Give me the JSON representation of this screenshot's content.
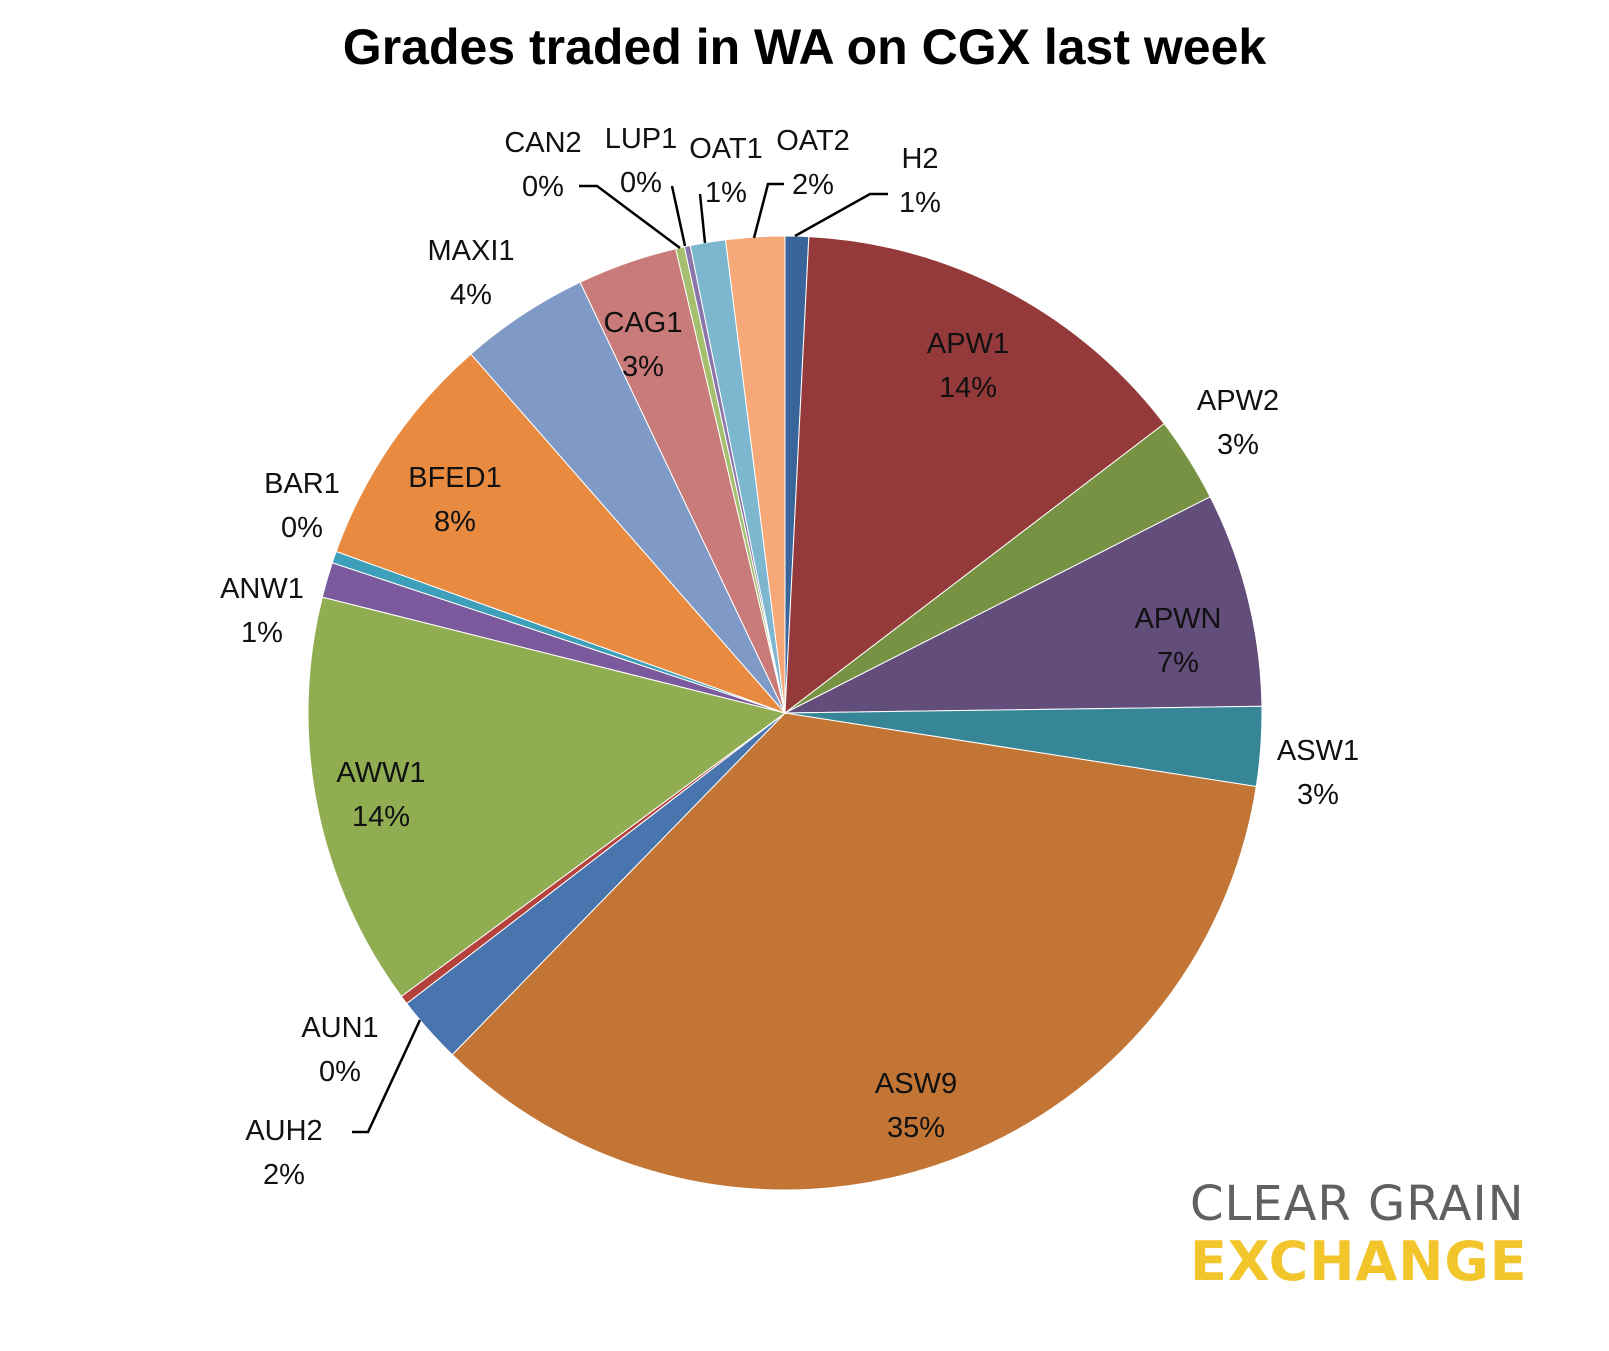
{
  "chart_data": {
    "type": "pie",
    "title": "Grades traded in WA on CGX last week",
    "start_angle_deg": 0,
    "direction": "clockwise",
    "slices": [
      {
        "label": "H2",
        "pct_label": "1%",
        "value": 0.8,
        "color": "#3a659b",
        "label_pos": "outside-leader"
      },
      {
        "label": "APW1",
        "pct_label": "14%",
        "value": 13.9,
        "color": "#953a3a",
        "label_pos": "inside"
      },
      {
        "label": "APW2",
        "pct_label": "3%",
        "value": 2.9,
        "color": "#789243",
        "label_pos": "outside"
      },
      {
        "label": "APWN",
        "pct_label": "7%",
        "value": 7.3,
        "color": "#624d7b",
        "label_pos": "inside"
      },
      {
        "label": "ASW1",
        "pct_label": "3%",
        "value": 2.7,
        "color": "#378697",
        "label_pos": "outside"
      },
      {
        "label": "ASW9",
        "pct_label": "35%",
        "value": 35.0,
        "color": "#c27535",
        "label_pos": "inside"
      },
      {
        "label": "AUH2",
        "pct_label": "2%",
        "value": 2.3,
        "color": "#4875ae",
        "label_pos": "outside-leader"
      },
      {
        "label": "AUN1",
        "pct_label": "0%",
        "value": 0.3,
        "color": "#b5413d",
        "label_pos": "outside"
      },
      {
        "label": "AWW1",
        "pct_label": "14%",
        "value": 14.1,
        "color": "#91ad52",
        "label_pos": "inside"
      },
      {
        "label": "ANW1",
        "pct_label": "1%",
        "value": 1.2,
        "color": "#7a5a9c",
        "label_pos": "outside"
      },
      {
        "label": "BAR1",
        "pct_label": "0%",
        "value": 0.4,
        "color": "#3d9fb9",
        "label_pos": "outside"
      },
      {
        "label": "BFED1",
        "pct_label": "8%",
        "value": 8.1,
        "color": "#e88b40",
        "label_pos": "inside"
      },
      {
        "label": "MAXI1",
        "pct_label": "4%",
        "value": 4.4,
        "color": "#7f9ac6",
        "label_pos": "outside"
      },
      {
        "label": "CAG1",
        "pct_label": "3%",
        "value": 3.4,
        "color": "#c97b79",
        "label_pos": "inside"
      },
      {
        "label": "CAN2",
        "pct_label": "0%",
        "value": 0.3,
        "color": "#a5bf6e",
        "label_pos": "outside-leader"
      },
      {
        "label": "LUP1",
        "pct_label": "0%",
        "value": 0.2,
        "color": "#8a75ab",
        "label_pos": "outside-leader"
      },
      {
        "label": "OAT1",
        "pct_label": "1%",
        "value": 1.2,
        "color": "#7db7cf",
        "label_pos": "outside-leader"
      },
      {
        "label": "OAT2",
        "pct_label": "2%",
        "value": 2.0,
        "color": "#f7a878",
        "label_pos": "outside-leader"
      }
    ]
  },
  "logo": {
    "line1": "CLEAR GRAIN",
    "line2": "EXCHANGE",
    "line1_color": "#606060",
    "line2_color": "#f2c52b"
  }
}
